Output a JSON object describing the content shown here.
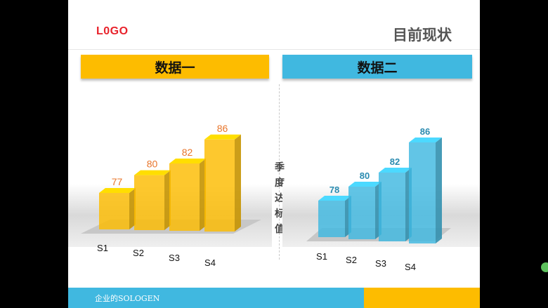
{
  "slide": {
    "logo": "L0GO",
    "title": "目前现状",
    "footer_text": "企业的SOLOGEN"
  },
  "colors": {
    "yellow": "#fdbc00",
    "blue": "#40b8e0",
    "logo_red": "#e8222b"
  },
  "left_panel": {
    "header": "数据一"
  },
  "right_panel": {
    "header": "数据二"
  },
  "middle_label": [
    "季",
    "度",
    "达",
    "标",
    "值"
  ],
  "chart_data": [
    {
      "type": "bar",
      "categories": [
        "S1",
        "S2",
        "S3",
        "S4"
      ],
      "values": [
        77,
        80,
        82,
        86
      ],
      "title": "数据一",
      "color": "#fdbc00",
      "label_color": "#e8752a"
    },
    {
      "type": "bar",
      "categories": [
        "S1",
        "S2",
        "S3",
        "S4"
      ],
      "values": [
        78,
        80,
        82,
        86
      ],
      "title": "数据二",
      "color": "#40b8e0",
      "label_color": "#2a8bb0"
    }
  ]
}
